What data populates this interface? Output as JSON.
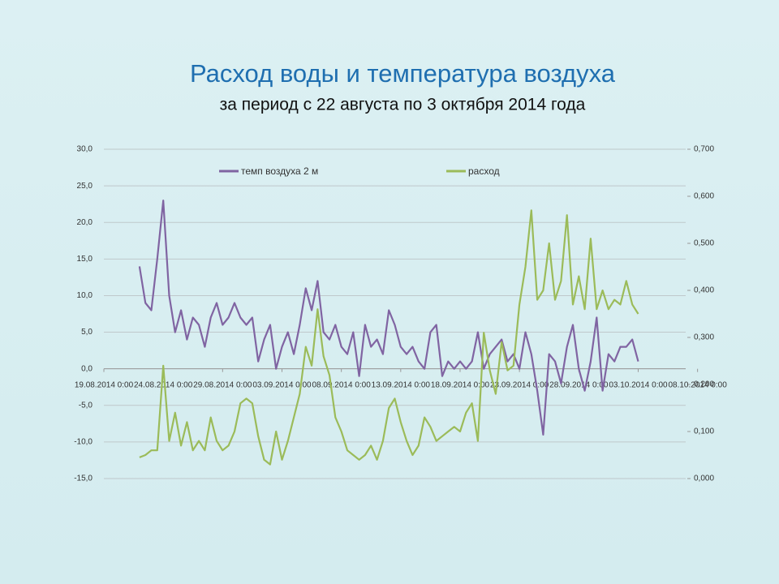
{
  "chart_data": {
    "type": "line",
    "title": "Расход воды и температура воздуха",
    "subtitle": "за период с 22 августа по 3 октября 2014 года",
    "x": [
      "2014-08-22T00:00",
      "2014-08-22T12:00",
      "2014-08-23T00:00",
      "2014-08-23T12:00",
      "2014-08-24T00:00",
      "2014-08-24T12:00",
      "2014-08-25T00:00",
      "2014-08-25T12:00",
      "2014-08-26T00:00",
      "2014-08-26T12:00",
      "2014-08-27T00:00",
      "2014-08-27T12:00",
      "2014-08-28T00:00",
      "2014-08-28T12:00",
      "2014-08-29T00:00",
      "2014-08-29T12:00",
      "2014-08-30T00:00",
      "2014-08-30T12:00",
      "2014-08-31T00:00",
      "2014-08-31T12:00",
      "2014-09-01T00:00",
      "2014-09-01T12:00",
      "2014-09-02T00:00",
      "2014-09-02T12:00",
      "2014-09-03T00:00",
      "2014-09-03T12:00",
      "2014-09-04T00:00",
      "2014-09-04T12:00",
      "2014-09-05T00:00",
      "2014-09-05T12:00",
      "2014-09-06T00:00",
      "2014-09-06T12:00",
      "2014-09-07T00:00",
      "2014-09-07T12:00",
      "2014-09-08T00:00",
      "2014-09-08T12:00",
      "2014-09-09T00:00",
      "2014-09-09T12:00",
      "2014-09-10T00:00",
      "2014-09-10T12:00",
      "2014-09-11T00:00",
      "2014-09-11T12:00",
      "2014-09-12T00:00",
      "2014-09-12T12:00",
      "2014-09-13T00:00",
      "2014-09-13T12:00",
      "2014-09-14T00:00",
      "2014-09-14T12:00",
      "2014-09-15T00:00",
      "2014-09-15T12:00",
      "2014-09-16T00:00",
      "2014-09-16T12:00",
      "2014-09-17T00:00",
      "2014-09-17T12:00",
      "2014-09-18T00:00",
      "2014-09-18T12:00",
      "2014-09-19T00:00",
      "2014-09-19T12:00",
      "2014-09-20T00:00",
      "2014-09-20T12:00",
      "2014-09-21T00:00",
      "2014-09-21T12:00",
      "2014-09-22T00:00",
      "2014-09-22T12:00",
      "2014-09-23T00:00",
      "2014-09-23T12:00",
      "2014-09-24T00:00",
      "2014-09-24T12:00",
      "2014-09-25T00:00",
      "2014-09-25T12:00",
      "2014-09-26T00:00",
      "2014-09-26T12:00",
      "2014-09-27T00:00",
      "2014-09-27T12:00",
      "2014-09-28T00:00",
      "2014-09-28T12:00",
      "2014-09-29T00:00",
      "2014-09-29T12:00",
      "2014-09-30T00:00",
      "2014-09-30T12:00",
      "2014-10-01T00:00",
      "2014-10-01T12:00",
      "2014-10-02T00:00",
      "2014-10-02T12:00",
      "2014-10-03T00:00"
    ],
    "series": [
      {
        "name": "темп воздуха 2 м",
        "color": "#8064a2",
        "axis": "y",
        "values": [
          14,
          9,
          8,
          15,
          23,
          10,
          5,
          8,
          4,
          7,
          6,
          3,
          7,
          9,
          6,
          7,
          9,
          7,
          6,
          7,
          1,
          4,
          6,
          0,
          3,
          5,
          2,
          6,
          11,
          8,
          12,
          5,
          4,
          6,
          3,
          2,
          5,
          -1,
          6,
          3,
          4,
          2,
          8,
          6,
          3,
          2,
          3,
          1,
          0,
          5,
          6,
          -1,
          1,
          0,
          1,
          0,
          1,
          5,
          0,
          2,
          3,
          4,
          1,
          2,
          0,
          5,
          2,
          -3,
          -9,
          2,
          1,
          -2,
          3,
          6,
          0,
          -3,
          1,
          7,
          -3,
          2,
          1,
          3,
          3,
          4,
          1
        ]
      },
      {
        "name": "расход",
        "color": "#9bbb59",
        "axis": "y2",
        "values": [
          0.045,
          0.05,
          0.06,
          0.06,
          0.24,
          0.08,
          0.14,
          0.07,
          0.12,
          0.06,
          0.08,
          0.06,
          0.13,
          0.08,
          0.06,
          0.07,
          0.1,
          0.16,
          0.17,
          0.16,
          0.09,
          0.04,
          0.03,
          0.1,
          0.04,
          0.08,
          0.13,
          0.18,
          0.28,
          0.24,
          0.36,
          0.26,
          0.22,
          0.13,
          0.1,
          0.06,
          0.05,
          0.04,
          0.05,
          0.07,
          0.04,
          0.08,
          0.15,
          0.17,
          0.12,
          0.08,
          0.05,
          0.07,
          0.13,
          0.11,
          0.08,
          0.09,
          0.1,
          0.11,
          0.1,
          0.14,
          0.16,
          0.08,
          0.31,
          0.23,
          0.18,
          0.29,
          0.23,
          0.24,
          0.37,
          0.45,
          0.57,
          0.38,
          0.4,
          0.5,
          0.38,
          0.42,
          0.56,
          0.37,
          0.43,
          0.36,
          0.51,
          0.36,
          0.4,
          0.36,
          0.38,
          0.37,
          0.42,
          0.37,
          0.35
        ]
      }
    ],
    "xlim": [
      "2014-08-19T00:00",
      "2014-10-07T00:00"
    ],
    "xticks": [
      {
        "value": "2014-08-19T00:00",
        "label": "19.08.2014 0:00"
      },
      {
        "value": "2014-08-24T00:00",
        "label": "24.08.2014 0:00"
      },
      {
        "value": "2014-08-29T00:00",
        "label": "29.08.2014 0:00"
      },
      {
        "value": "2014-09-03T00:00",
        "label": "03.09.2014 0:00"
      },
      {
        "value": "2014-09-08T00:00",
        "label": "08.09.2014 0:00"
      },
      {
        "value": "2014-09-13T00:00",
        "label": "13.09.2014 0:00"
      },
      {
        "value": "2014-09-18T00:00",
        "label": "18.09.2014 0:00"
      },
      {
        "value": "2014-09-23T00:00",
        "label": "23.09.2014 0:00"
      },
      {
        "value": "2014-09-28T00:00",
        "label": "28.09.2014 0:00"
      },
      {
        "value": "2014-10-03T00:00",
        "label": "03.10.2014 0:00"
      },
      {
        "value": "2014-10-08T00:00",
        "label": "08.10.2014 0:00"
      }
    ],
    "ylim": [
      -15,
      30
    ],
    "yticks": [
      {
        "value": -15,
        "label": "-15,0"
      },
      {
        "value": -10,
        "label": "-10,0"
      },
      {
        "value": -5,
        "label": "-5,0"
      },
      {
        "value": 0,
        "label": "0,0"
      },
      {
        "value": 5,
        "label": "5,0"
      },
      {
        "value": 10,
        "label": "10,0"
      },
      {
        "value": 15,
        "label": "15,0"
      },
      {
        "value": 20,
        "label": "20,0"
      },
      {
        "value": 25,
        "label": "25,0"
      },
      {
        "value": 30,
        "label": "30,0"
      }
    ],
    "y2lim": [
      0,
      0.7
    ],
    "y2ticks": [
      {
        "value": 0,
        "label": "0,000"
      },
      {
        "value": 0.1,
        "label": "0,100"
      },
      {
        "value": 0.2,
        "label": "0,200"
      },
      {
        "value": 0.3,
        "label": "0,300"
      },
      {
        "value": 0.4,
        "label": "0,400"
      },
      {
        "value": 0.5,
        "label": "0,500"
      },
      {
        "value": 0.6,
        "label": "0,600"
      },
      {
        "value": 0.7,
        "label": "0,700"
      }
    ],
    "grid": true,
    "legend": "top"
  }
}
